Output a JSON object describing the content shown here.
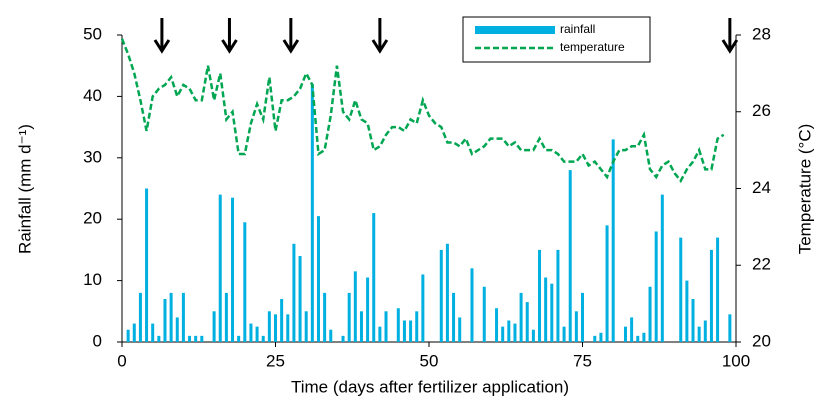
{
  "chart_data": {
    "type": "bar-line",
    "x_label": "Time (days after fertilizer application)",
    "y_label": "Rainfall (mm d⁻¹)",
    "y2_label": "Temperature (°C)",
    "xlim": [
      0,
      100
    ],
    "xticks": [
      0,
      25,
      50,
      75,
      100
    ],
    "ylim": [
      0,
      50
    ],
    "yticks": [
      0,
      10,
      20,
      30,
      40,
      50
    ],
    "y2lim": [
      20,
      28
    ],
    "y2ticks": [
      20,
      22,
      24,
      26,
      28
    ],
    "grid": false,
    "legend": "top-right",
    "arrows_x": [
      6.5,
      17.5,
      27.5,
      42,
      99
    ],
    "series": [
      {
        "name": "rainfall",
        "type": "bar",
        "color": "#00b0e0",
        "x": [
          1,
          2,
          3,
          4,
          5,
          6,
          7,
          8,
          9,
          10,
          11,
          12,
          13,
          15,
          16,
          17,
          18,
          19,
          20,
          21,
          22,
          23,
          24,
          25,
          26,
          27,
          28,
          29,
          30,
          31,
          32,
          33,
          34,
          36,
          37,
          38,
          39,
          40,
          41,
          42,
          43,
          45,
          46,
          47,
          48,
          49,
          52,
          53,
          54,
          55,
          57,
          59,
          61,
          62,
          63,
          64,
          65,
          66,
          67,
          68,
          69,
          70,
          71,
          72,
          73,
          74,
          75,
          77,
          78,
          79,
          80,
          82,
          83,
          84,
          85,
          86,
          87,
          88,
          91,
          92,
          93,
          94,
          95,
          96,
          97,
          99
        ],
        "values": [
          2,
          3,
          8,
          25,
          3,
          1,
          7,
          8,
          4,
          8,
          1,
          1,
          1,
          5,
          24,
          8,
          23.5,
          1,
          19.5,
          3,
          2.5,
          1,
          5,
          4.5,
          7,
          4.5,
          16,
          14,
          5,
          42,
          20.5,
          8,
          2,
          1,
          8,
          11.5,
          5,
          10.5,
          21,
          2.5,
          5,
          5.5,
          3.5,
          3.5,
          5,
          11,
          15,
          16,
          8,
          4,
          12,
          9,
          5.5,
          2.5,
          3.5,
          3,
          8,
          6.5,
          2,
          15,
          10.5,
          9.5,
          15,
          2.5,
          28,
          5,
          8,
          1,
          1.5,
          19,
          33,
          2.5,
          4,
          1,
          1.5,
          9,
          18,
          24,
          17,
          10,
          7,
          2.5,
          3.5,
          15,
          17,
          4.5
        ]
      },
      {
        "name": "temperature",
        "type": "line",
        "axis": "y2",
        "color": "#00a651",
        "x": [
          0,
          1,
          2,
          3,
          4,
          5,
          6,
          7,
          8,
          9,
          10,
          11,
          12,
          13,
          14,
          15,
          16,
          17,
          18,
          19,
          20,
          21,
          22,
          23,
          24,
          25,
          26,
          27,
          28,
          29,
          30,
          31,
          32,
          33,
          34,
          35,
          36,
          37,
          38,
          39,
          40,
          41,
          42,
          43,
          44,
          45,
          46,
          47,
          48,
          49,
          50,
          51,
          52,
          53,
          54,
          55,
          56,
          57,
          58,
          59,
          60,
          61,
          62,
          63,
          64,
          65,
          66,
          67,
          68,
          69,
          70,
          71,
          72,
          73,
          74,
          75,
          76,
          77,
          78,
          79,
          80,
          81,
          82,
          83,
          84,
          85,
          86,
          87,
          88,
          89,
          90,
          91,
          92,
          93,
          94,
          95,
          96,
          97,
          98
        ],
        "values": [
          27.9,
          27.5,
          27,
          26.3,
          25.5,
          26.4,
          26.6,
          26.7,
          26.9,
          26.4,
          26.7,
          26.6,
          26.3,
          26.3,
          27.2,
          26.3,
          27,
          25.8,
          26,
          24.9,
          24.9,
          25.7,
          26.2,
          25.8,
          26.9,
          25.5,
          26.3,
          26.3,
          26.4,
          26.6,
          27,
          26.7,
          24.9,
          25,
          25.9,
          27.2,
          26,
          25.8,
          26.3,
          25.8,
          25.7,
          25,
          25.1,
          25.4,
          25.6,
          25.6,
          25.5,
          25.8,
          25.7,
          26.3,
          25.9,
          25.7,
          25.6,
          25.2,
          25.2,
          25.1,
          25.3,
          24.9,
          25,
          25.1,
          25.3,
          25.3,
          25.3,
          25.1,
          25.2,
          25,
          25,
          25,
          25.3,
          25,
          25,
          24.9,
          24.7,
          24.7,
          24.7,
          24.9,
          24.6,
          24.7,
          24.5,
          24.3,
          24.7,
          25,
          25,
          25.1,
          25.1,
          25.4,
          24.5,
          24.3,
          24.6,
          24.7,
          24.4,
          24.2,
          24.5,
          24.7,
          25,
          24.5,
          24.5,
          25.3,
          25.4
        ]
      }
    ]
  }
}
